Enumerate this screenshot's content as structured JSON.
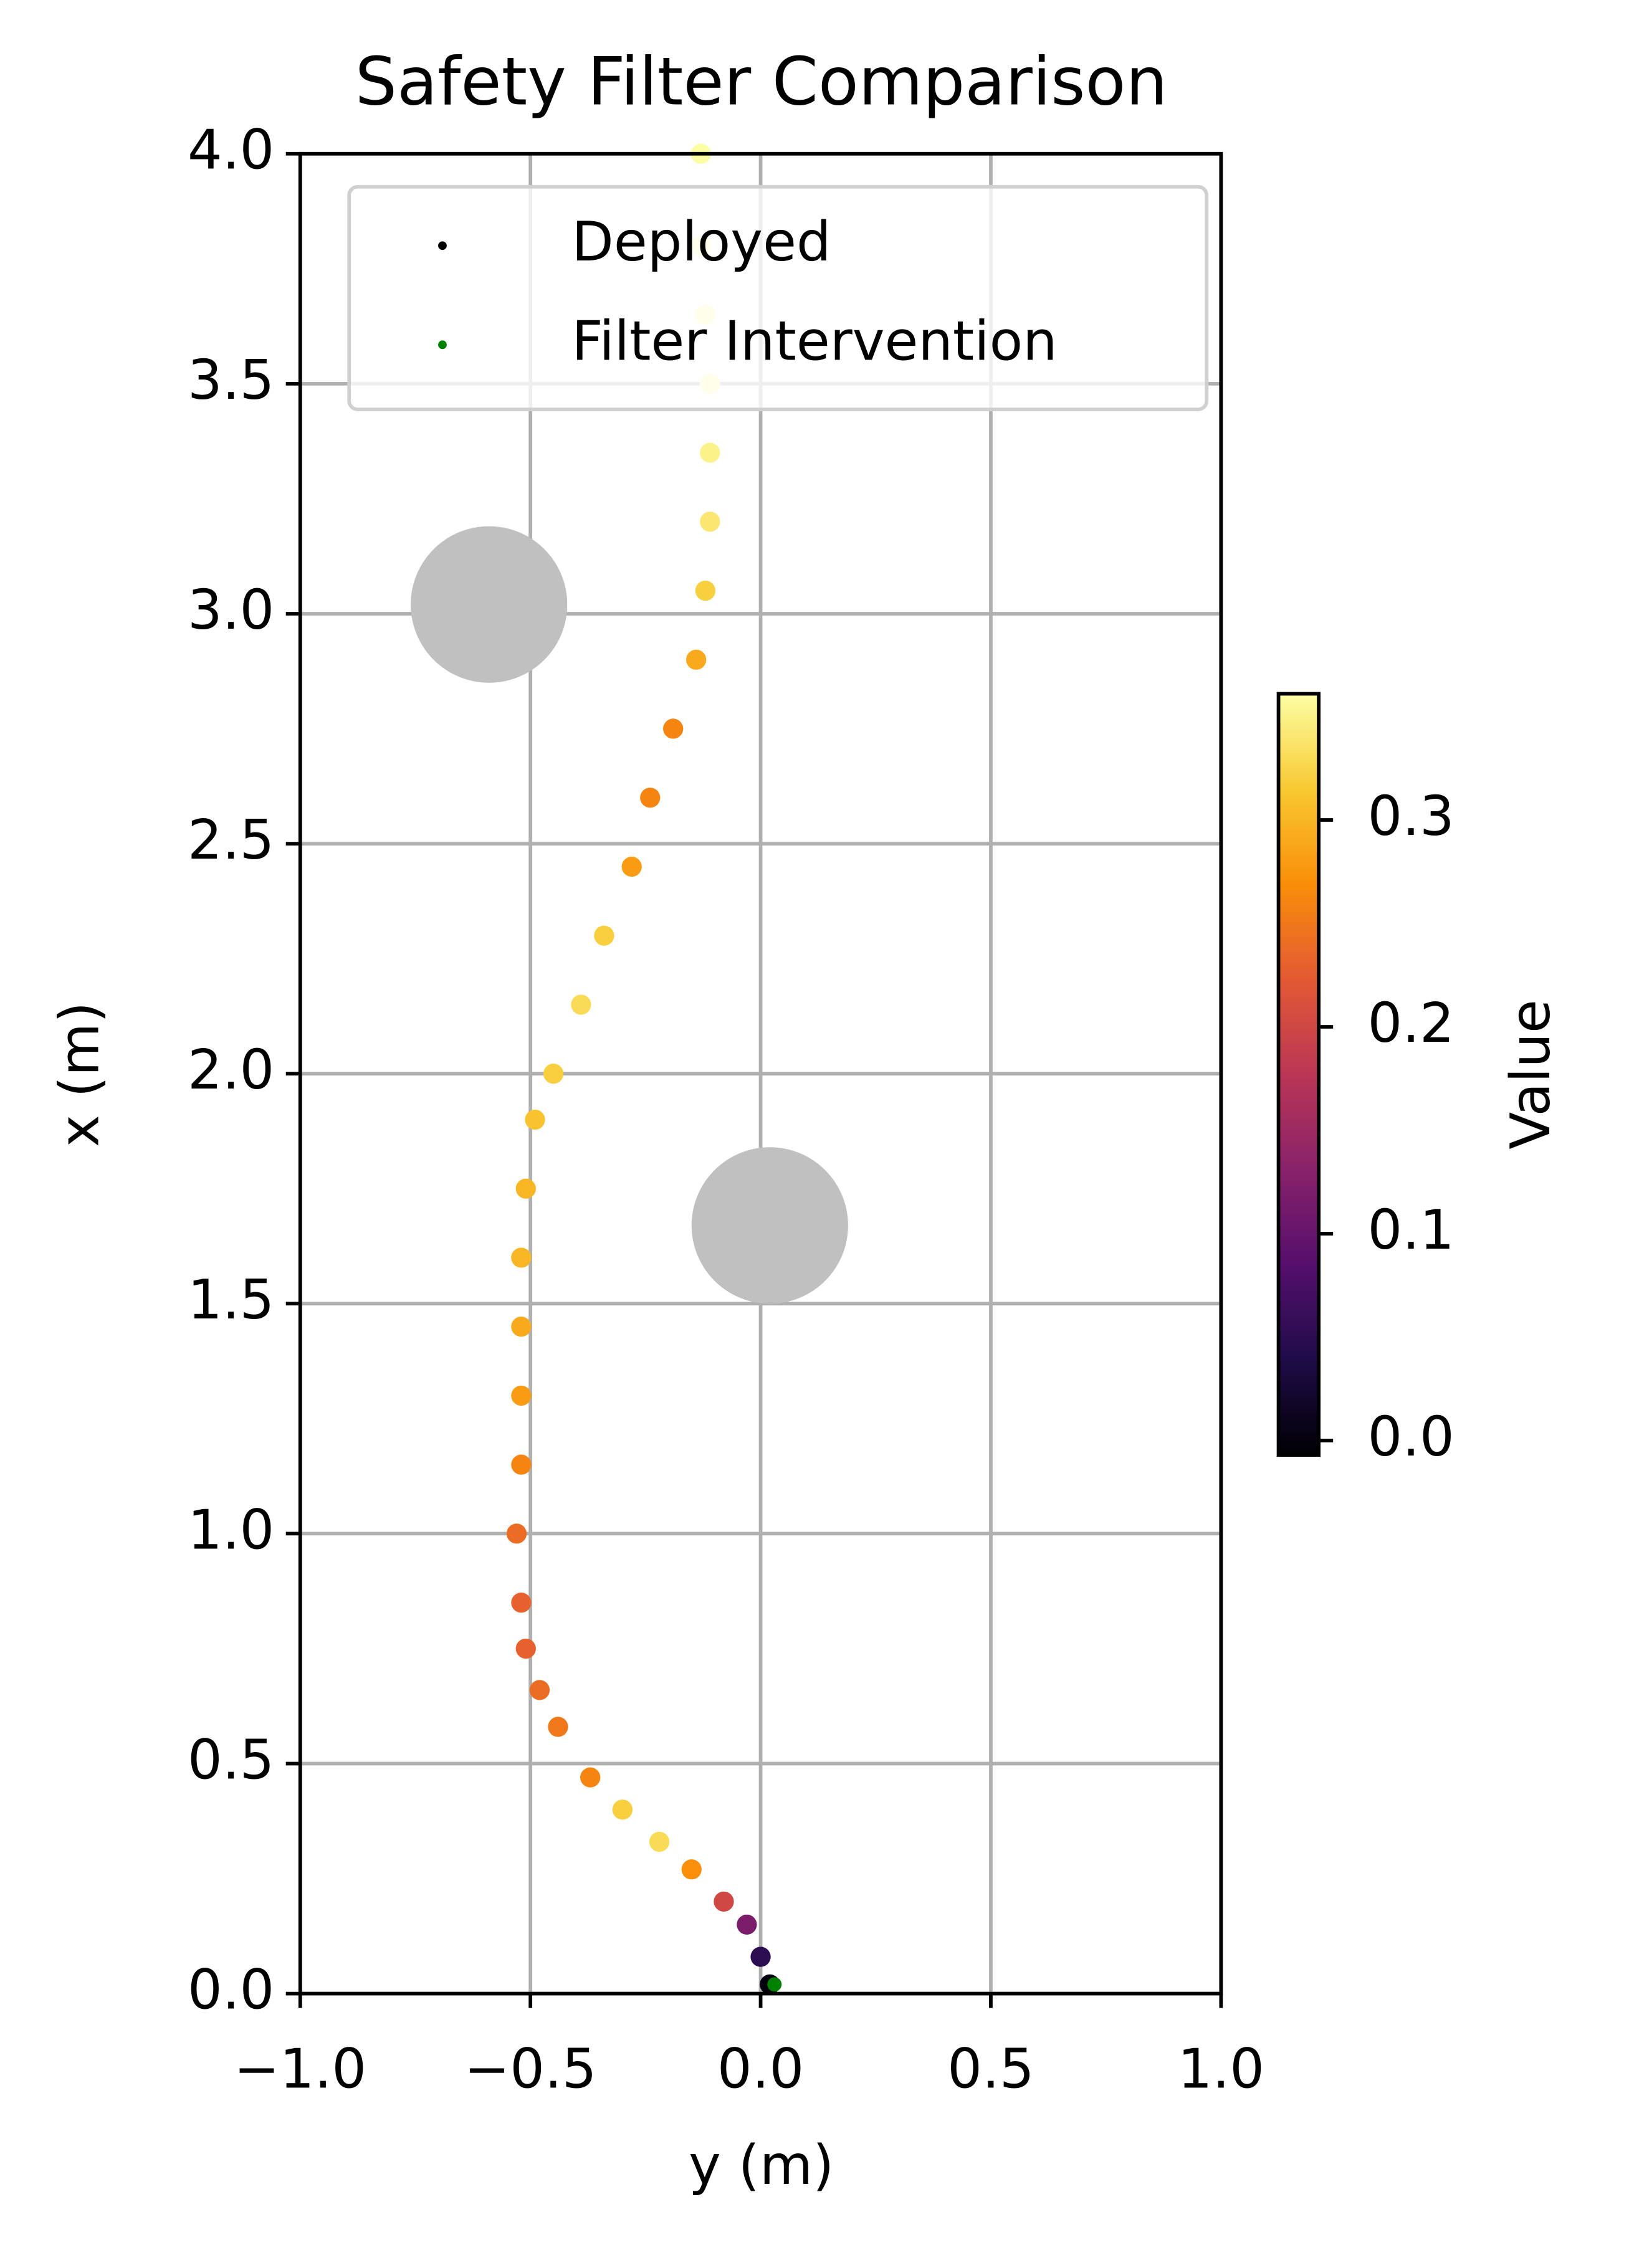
{
  "chart_data": {
    "type": "scatter",
    "title": "Safety Filter Comparison",
    "xlabel": "y (m)",
    "ylabel": "x (m)",
    "xlim": [
      -1,
      1
    ],
    "ylim": [
      0,
      4
    ],
    "xticks": [
      {
        "value": -1,
        "label": "−1.0"
      },
      {
        "value": -0.5,
        "label": "−0.5"
      },
      {
        "value": 0,
        "label": "0.0"
      },
      0.5,
      {
        "value": 1,
        "label": "1.0"
      }
    ],
    "yticks": [
      {
        "value": 0,
        "label": "0.0"
      },
      0.5,
      {
        "value": 1,
        "label": "1.0"
      },
      1.5,
      {
        "value": 2,
        "label": "2.0"
      },
      2.5,
      {
        "value": 3,
        "label": "3.0"
      },
      3.5,
      {
        "value": 4,
        "label": "4.0"
      }
    ],
    "grid": true,
    "legend": "upper center",
    "series": [
      {
        "name": "Deployed",
        "color": "black",
        "x": [
          0.02,
          0.0,
          -0.03,
          -0.08,
          -0.15,
          -0.22,
          -0.3,
          -0.37,
          -0.44,
          -0.48,
          -0.51,
          -0.52,
          -0.53,
          -0.52,
          -0.52,
          -0.52,
          -0.52,
          -0.51,
          -0.49,
          -0.45,
          -0.39,
          -0.34,
          -0.28,
          -0.24,
          -0.19,
          -0.14,
          -0.12,
          -0.11,
          -0.11,
          -0.11,
          -0.12,
          -0.13,
          -0.13
        ],
        "y": [
          0.02,
          0.08,
          0.15,
          0.2,
          0.27,
          0.33,
          0.4,
          0.47,
          0.58,
          0.66,
          0.75,
          0.85,
          1.0,
          1.15,
          1.3,
          1.45,
          1.6,
          1.75,
          1.9,
          2.0,
          2.15,
          2.3,
          2.45,
          2.6,
          2.75,
          2.9,
          3.05,
          3.2,
          3.35,
          3.5,
          3.65,
          3.8,
          4.0
        ],
        "values": [
          0.0,
          0.05,
          0.12,
          0.2,
          0.27,
          0.33,
          0.32,
          0.26,
          0.25,
          0.24,
          0.23,
          0.23,
          0.24,
          0.26,
          0.28,
          0.29,
          0.3,
          0.3,
          0.31,
          0.32,
          0.33,
          0.32,
          0.28,
          0.26,
          0.26,
          0.29,
          0.32,
          0.34,
          0.35,
          0.36,
          0.36,
          0.36,
          0.36
        ]
      },
      {
        "name": "Filter Intervention",
        "color": "green",
        "x": [
          0.03
        ],
        "y": [
          0.02
        ]
      }
    ],
    "obstacles": [
      {
        "x": -0.59,
        "y": 3.02,
        "r": 0.17,
        "color": "#c0c0c0"
      },
      {
        "x": 0.02,
        "y": 1.67,
        "r": 0.17,
        "color": "#c0c0c0"
      }
    ],
    "colorbar": {
      "label": "Value",
      "clim": [
        -0.007,
        0.361
      ],
      "ticks": [
        {
          "value": 0,
          "label": "0.0"
        },
        0.1,
        0.2,
        0.3
      ],
      "colormap": [
        "#000004",
        "#1f0c48",
        "#550f6d",
        "#88226a",
        "#ba3655",
        "#e35933",
        "#f98e09",
        "#f8c932",
        "#fcffa4"
      ]
    }
  }
}
